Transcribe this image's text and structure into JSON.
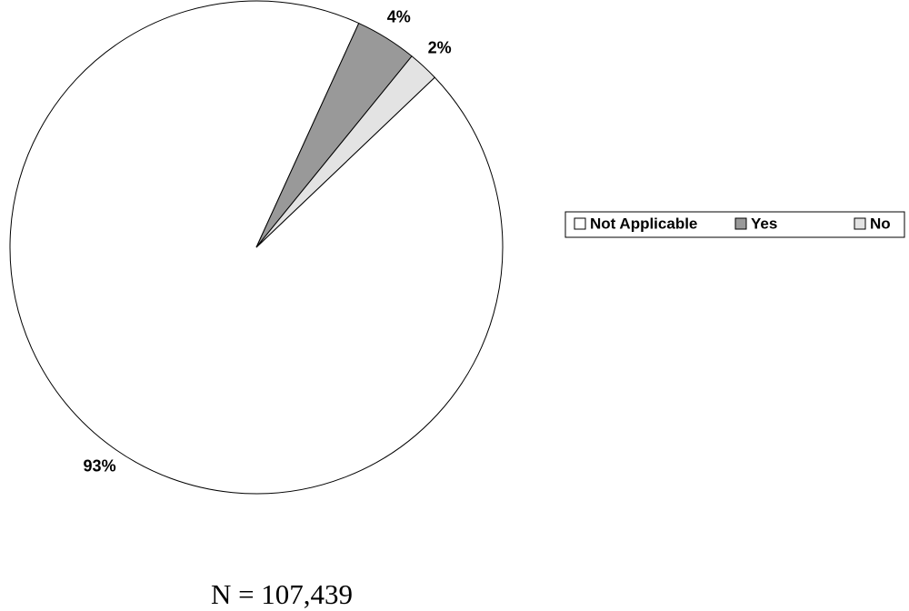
{
  "chart_data": {
    "type": "pie",
    "categories": [
      "Not Applicable",
      "Yes",
      "No"
    ],
    "values": [
      93,
      4,
      2
    ],
    "value_labels": [
      "93%",
      "4%",
      "2%"
    ],
    "colors": [
      "#ffffff",
      "#999999",
      "#e3e3e3"
    ],
    "legend": "right",
    "annotation": "N = 107,439"
  }
}
